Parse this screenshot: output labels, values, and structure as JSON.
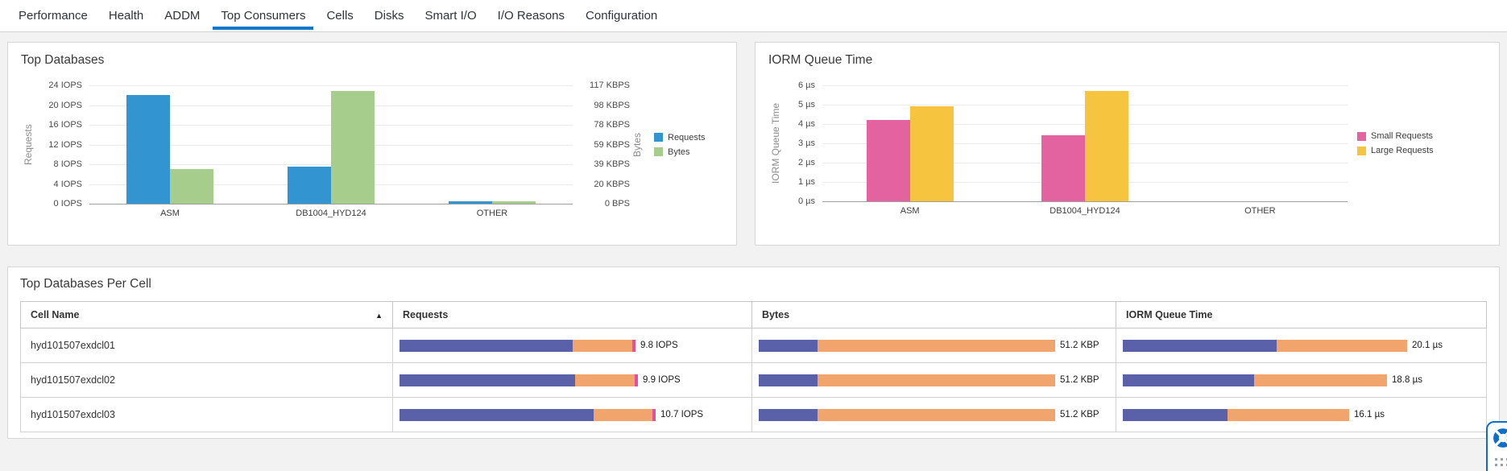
{
  "tabs": {
    "active_index": 3,
    "items": [
      {
        "label": "Performance"
      },
      {
        "label": "Health"
      },
      {
        "label": "ADDM"
      },
      {
        "label": "Top Consumers"
      },
      {
        "label": "Cells"
      },
      {
        "label": "Disks"
      },
      {
        "label": "Smart I/O"
      },
      {
        "label": "I/O Reasons"
      },
      {
        "label": "Configuration"
      }
    ]
  },
  "chart_data": [
    {
      "type": "bar",
      "title": "Top Databases",
      "categories": [
        "ASM",
        "DB1004_HYD124",
        "OTHER"
      ],
      "series": [
        {
          "name": "Requests",
          "axis": "left",
          "color": "#3295d2",
          "unit": "IOPS",
          "values": [
            22,
            7.5,
            0.5
          ]
        },
        {
          "name": "Bytes",
          "axis": "right",
          "color": "#a6cd8b",
          "unit": "KBPS",
          "values": [
            34,
            112,
            2.4
          ]
        }
      ],
      "left_axis": {
        "label": "Requests",
        "max": 24,
        "ticks": [
          "24 IOPS",
          "20 IOPS",
          "16 IOPS",
          "12 IOPS",
          "8 IOPS",
          "4 IOPS",
          "0 IOPS"
        ]
      },
      "right_axis": {
        "label": "Bytes",
        "max": 117.2,
        "ticks": [
          "117 KBPS",
          "98 KBPS",
          "78 KBPS",
          "59 KBPS",
          "39 KBPS",
          "20 KBPS",
          "0 BPS"
        ]
      },
      "legend_position": "right",
      "grid": true
    },
    {
      "type": "bar",
      "title": "IORM Queue Time",
      "categories": [
        "ASM",
        "DB1004_HYD124",
        "OTHER"
      ],
      "series": [
        {
          "name": "Small Requests",
          "axis": "left",
          "color": "#e2639f",
          "unit": "µs",
          "values": [
            4.2,
            3.4,
            0
          ]
        },
        {
          "name": "Large Requests",
          "axis": "left",
          "color": "#f6c43e",
          "unit": "µs",
          "values": [
            4.9,
            5.7,
            0
          ]
        }
      ],
      "left_axis": {
        "label": "IORM Queue Time",
        "max": 6,
        "ticks": [
          "6 µs",
          "5 µs",
          "4 µs",
          "3 µs",
          "2 µs",
          "1 µs",
          "0 µs"
        ]
      },
      "legend_position": "right",
      "grid": true
    }
  ],
  "table": {
    "title": "Top Databases Per Cell",
    "columns": [
      "Cell Name",
      "Requests",
      "Bytes",
      "IORM Queue Time"
    ],
    "sort": {
      "column": "Cell Name",
      "direction": "ascending",
      "arrow": "▲"
    },
    "bar_colors": [
      "#5a61a8",
      "#f2a46d",
      "#e0509c"
    ],
    "rows": [
      {
        "cell_name": "hyd101507exdcl01",
        "requests": {
          "value": "9.8 IOPS",
          "segments": [
            215,
            74,
            4
          ]
        },
        "bytes": {
          "value": "51.2 KBP",
          "segments": [
            73,
            295
          ]
        },
        "iorm_queue_time": {
          "value": "20.1 µs",
          "segments": [
            191,
            162
          ]
        }
      },
      {
        "cell_name": "hyd101507exdcl02",
        "requests": {
          "value": "9.9 IOPS",
          "segments": [
            218,
            74,
            4
          ]
        },
        "bytes": {
          "value": "51.2 KBP",
          "segments": [
            73,
            295
          ]
        },
        "iorm_queue_time": {
          "value": "18.8 µs",
          "segments": [
            163,
            165
          ]
        }
      },
      {
        "cell_name": "hyd101507exdcl03",
        "requests": {
          "value": "10.7 IOPS",
          "segments": [
            241,
            73,
            4
          ]
        },
        "bytes": {
          "value": "51.2 KBP",
          "segments": [
            73,
            295
          ]
        },
        "iorm_queue_time": {
          "value": "16.1 µs",
          "segments": [
            130,
            151
          ]
        }
      }
    ]
  },
  "colors": {
    "tab_active_underline": "#1378c7",
    "requests_bar": "#3295d2",
    "bytes_bar": "#a6cd8b",
    "small_requests_bar": "#e2639f",
    "large_requests_bar": "#f6c43e",
    "table_bar_primary": "#5a61a8",
    "table_bar_secondary": "#f2a46d",
    "table_bar_tertiary": "#e0509c",
    "help_widget_border": "#0d6fc8"
  },
  "help_widget": {
    "icon": "lifebuoy"
  }
}
